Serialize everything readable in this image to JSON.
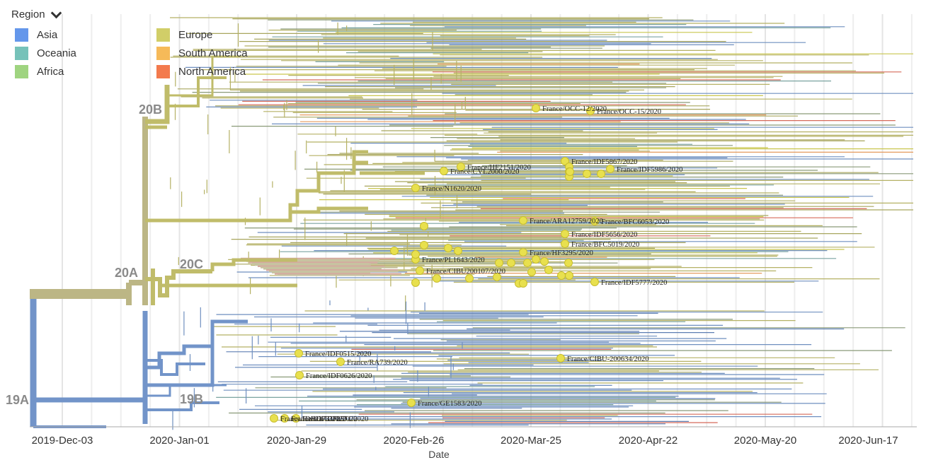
{
  "legend": {
    "title": "Region",
    "icon": "chevron-down-icon",
    "items": [
      {
        "label": "Asia",
        "color": "#4a86e8"
      },
      {
        "label": "Oceania",
        "color": "#5fb8ad"
      },
      {
        "label": "Africa",
        "color": "#8fcd6b"
      },
      {
        "label": "Europe",
        "color": "#c9c64e"
      },
      {
        "label": "South America",
        "color": "#f5ae3d"
      },
      {
        "label": "North America",
        "color": "#f2632f"
      }
    ]
  },
  "axis": {
    "label": "Date",
    "ticks": [
      "2019-Dec-03",
      "2020-Jan-01",
      "2020-Jan-29",
      "2020-Feb-26",
      "2020-Mar-25",
      "2020-Apr-22",
      "2020-May-20",
      "2020-Jun-17"
    ]
  },
  "clades": [
    {
      "label": "20B"
    },
    {
      "label": "20A"
    },
    {
      "label": "20C"
    },
    {
      "label": "19A"
    },
    {
      "label": "19B"
    }
  ],
  "tips": [
    {
      "label": "France/OCC-12/2020"
    },
    {
      "label": "France/OCC-15/2020"
    },
    {
      "label": "France/HF2151/2020"
    },
    {
      "label": "France/CVL2000/2020"
    },
    {
      "label": "France/IDF5867/2020"
    },
    {
      "label": "France/IDF5986/2020"
    },
    {
      "label": "France/N1620/2020"
    },
    {
      "label": "France/ARA12759/2020"
    },
    {
      "label": "France/BFC6053/2020"
    },
    {
      "label": "France/IDF5656/2020"
    },
    {
      "label": "France/BFC5019/2020"
    },
    {
      "label": "France/HF3295/2020"
    },
    {
      "label": "France/PL1643/2020"
    },
    {
      "label": "France/CIBU200107/2020"
    },
    {
      "label": "France/IDF5777/2020"
    },
    {
      "label": "France/IDF0515/2020"
    },
    {
      "label": "France/RA739/2020"
    },
    {
      "label": "France/IDF0626/2020"
    },
    {
      "label": "France/CIBU-200634/2020"
    },
    {
      "label": "France/GE1583/2020"
    },
    {
      "label": "France/IDF0373/2020"
    },
    {
      "label": "France/IDF0372/2020"
    },
    {
      "label": "France/IDF0571/2020"
    }
  ]
}
